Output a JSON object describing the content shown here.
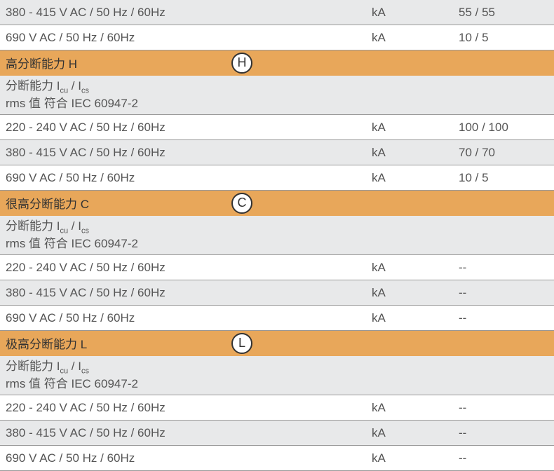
{
  "colors": {
    "bg_gray": "#e8e9ea",
    "bg_white": "#ffffff",
    "bg_orange": "#e8a75a",
    "border": "#999999",
    "text": "#555555",
    "icon_border": "#333333"
  },
  "fonts": {
    "row_fontsize": 17,
    "sub_fontsize": 11
  },
  "top_rows": [
    {
      "label": "380 - 415 V AC / 50 Hz / 60Hz",
      "unit": "kA",
      "value": "55 / 55",
      "bg": "gray"
    },
    {
      "label": "690 V AC / 50 Hz / 60Hz",
      "unit": "kA",
      "value": "10 / 5",
      "bg": "white"
    }
  ],
  "sections": [
    {
      "header": "高分断能力 H",
      "icon_letter": "H",
      "sub_label_line1": "分断能力 I",
      "sub_label_sub1": "cu",
      "sub_label_mid": " / I",
      "sub_label_sub2": "cs",
      "sub_label_line2": "rms 值 符合 IEC 60947-2",
      "rows": [
        {
          "label": "220 - 240 V AC / 50 Hz / 60Hz",
          "unit": "kA",
          "value": "100 / 100",
          "bg": "white"
        },
        {
          "label": "380 - 415 V AC / 50 Hz / 60Hz",
          "unit": "kA",
          "value": "70 / 70",
          "bg": "gray"
        },
        {
          "label": "690 V AC / 50 Hz / 60Hz",
          "unit": "kA",
          "value": "10 / 5",
          "bg": "white"
        }
      ]
    },
    {
      "header": "很高分断能力 C",
      "icon_letter": "C",
      "sub_label_line1": "分断能力 I",
      "sub_label_sub1": "cu",
      "sub_label_mid": " / I",
      "sub_label_sub2": "cs",
      "sub_label_line2": "rms 值 符合 IEC 60947-2",
      "rows": [
        {
          "label": "220 - 240 V AC / 50 Hz / 60Hz",
          "unit": "kA",
          "value": "--",
          "bg": "white"
        },
        {
          "label": "380 - 415 V AC / 50 Hz / 60Hz",
          "unit": "kA",
          "value": "--",
          "bg": "gray"
        },
        {
          "label": "690 V AC / 50 Hz / 60Hz",
          "unit": "kA",
          "value": "--",
          "bg": "white"
        }
      ]
    },
    {
      "header": "极高分断能力 L",
      "icon_letter": "L",
      "sub_label_line1": "分断能力 I",
      "sub_label_sub1": "cu",
      "sub_label_mid": " / I",
      "sub_label_sub2": "cs",
      "sub_label_line2": "rms 值 符合 IEC 60947-2",
      "rows": [
        {
          "label": "220 - 240 V AC / 50 Hz / 60Hz",
          "unit": "kA",
          "value": "--",
          "bg": "white"
        },
        {
          "label": "380 - 415 V AC / 50 Hz / 60Hz",
          "unit": "kA",
          "value": "--",
          "bg": "gray"
        },
        {
          "label": "690 V AC / 50 Hz / 60Hz",
          "unit": "kA",
          "value": "--",
          "bg": "white"
        }
      ]
    }
  ]
}
